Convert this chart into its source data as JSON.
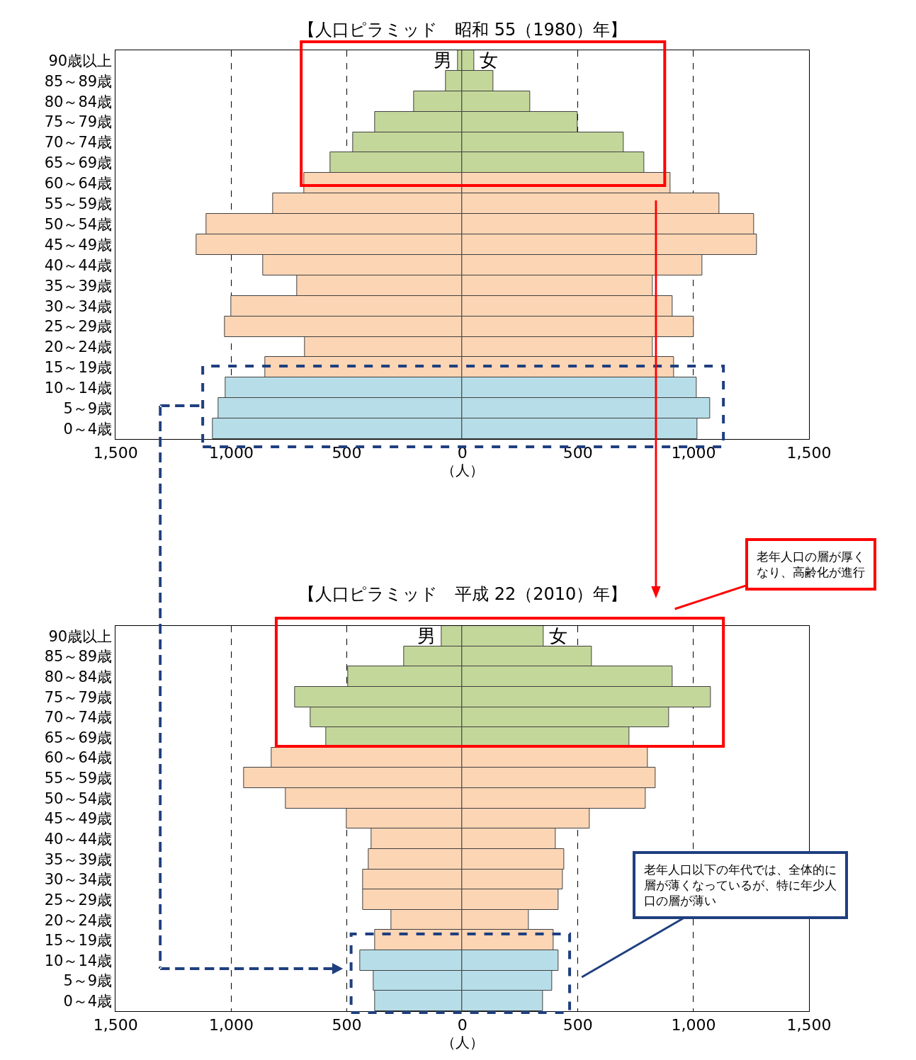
{
  "chart_data": [
    {
      "type": "bar",
      "orientation": "horizontal",
      "stacked": true,
      "title": "【人口ピラミッド　昭和 55（1980）年】",
      "xlabel": "（人）",
      "categories": [
        "90歳以上",
        "85～89歳",
        "80～84歳",
        "75～79歳",
        "70～74歳",
        "65～69歳",
        "60～64歳",
        "55～59歳",
        "50～54歳",
        "45～49歳",
        "40～44歳",
        "35～39歳",
        "30～34歳",
        "25～29歳",
        "20～24歳",
        "15～19歳",
        "10～14歳",
        "5～9歳",
        "0～4歳"
      ],
      "series": [
        {
          "name": "男",
          "values": [
            -20,
            -73,
            -210,
            -379,
            -472,
            -571,
            -685,
            -819,
            -1108,
            -1152,
            -863,
            -714,
            -1000,
            -1029,
            -682,
            -854,
            -1026,
            -1055,
            -1079
          ],
          "colors": [
            "#c4d79b",
            "#c4d79b",
            "#c4d79b",
            "#c4d79b",
            "#c4d79b",
            "#c4d79b",
            "#fcd5b5",
            "#fcd5b5",
            "#fcd5b5",
            "#fcd5b5",
            "#fcd5b5",
            "#fcd5b5",
            "#fcd5b5",
            "#fcd5b5",
            "#fcd5b5",
            "#fcd5b5",
            "#b7dee8",
            "#b7dee8",
            "#b7dee8"
          ]
        },
        {
          "name": "女",
          "values": [
            50,
            134,
            294,
            499,
            697,
            787,
            901,
            1111,
            1262,
            1274,
            1038,
            822,
            910,
            1000,
            822,
            915,
            1012,
            1073,
            1017
          ],
          "colors": [
            "#c4d79b",
            "#c4d79b",
            "#c4d79b",
            "#c4d79b",
            "#c4d79b",
            "#c4d79b",
            "#fcd5b5",
            "#fcd5b5",
            "#fcd5b5",
            "#fcd5b5",
            "#fcd5b5",
            "#fcd5b5",
            "#fcd5b5",
            "#fcd5b5",
            "#fcd5b5",
            "#fcd5b5",
            "#b7dee8",
            "#b7dee8",
            "#b7dee8"
          ]
        }
      ],
      "xlim": [
        -1500,
        1500
      ],
      "xticks": [
        {
          "value": -1500,
          "label": "1,500"
        },
        {
          "value": -1000,
          "label": "1,000"
        },
        {
          "value": -500,
          "label": "500"
        },
        0,
        500,
        {
          "value": 1000,
          "label": "1,000"
        },
        {
          "value": 1500,
          "label": "1,500"
        }
      ],
      "grid": "x"
    },
    {
      "type": "bar",
      "orientation": "horizontal",
      "stacked": true,
      "title": "【人口ピラミッド　平成 22（2010）年】",
      "xlabel": "（人）",
      "categories": [
        "90歳以上",
        "85～89歳",
        "80～84歳",
        "75～79歳",
        "70～74歳",
        "65～69歳",
        "60～64歳",
        "55～59歳",
        "50～54歳",
        "45～49歳",
        "40～44歳",
        "35～39歳",
        "30～34歳",
        "25～29歳",
        "20～24歳",
        "15～19歳",
        "10～14歳",
        "5～9歳",
        "0～4歳"
      ],
      "series": [
        {
          "name": "男",
          "values": [
            -90,
            -251,
            -496,
            -723,
            -656,
            -589,
            -825,
            -945,
            -764,
            -501,
            -394,
            -405,
            -429,
            -429,
            -309,
            -379,
            -443,
            -385,
            -379
          ],
          "colors": [
            "#c4d79b",
            "#c4d79b",
            "#c4d79b",
            "#c4d79b",
            "#c4d79b",
            "#c4d79b",
            "#fcd5b5",
            "#fcd5b5",
            "#fcd5b5",
            "#fcd5b5",
            "#fcd5b5",
            "#fcd5b5",
            "#fcd5b5",
            "#fcd5b5",
            "#fcd5b5",
            "#fcd5b5",
            "#b7dee8",
            "#b7dee8",
            "#b7dee8"
          ]
        },
        {
          "name": "女",
          "values": [
            350,
            560,
            910,
            1076,
            895,
            723,
            802,
            837,
            793,
            551,
            402,
            440,
            434,
            417,
            286,
            394,
            417,
            388,
            347
          ],
          "colors": [
            "#c4d79b",
            "#c4d79b",
            "#c4d79b",
            "#c4d79b",
            "#c4d79b",
            "#c4d79b",
            "#fcd5b5",
            "#fcd5b5",
            "#fcd5b5",
            "#fcd5b5",
            "#fcd5b5",
            "#fcd5b5",
            "#fcd5b5",
            "#fcd5b5",
            "#fcd5b5",
            "#fcd5b5",
            "#b7dee8",
            "#b7dee8",
            "#b7dee8"
          ]
        }
      ],
      "xlim": [
        -1500,
        1500
      ],
      "xticks": [
        {
          "value": -1500,
          "label": "1,500"
        },
        {
          "value": -1000,
          "label": "1,000"
        },
        {
          "value": -500,
          "label": "500"
        },
        0,
        500,
        {
          "value": 1000,
          "label": "1,000"
        },
        {
          "value": 1500,
          "label": "1,500"
        }
      ],
      "grid": "x",
      "annotations": [
        "老年人口の層が厚くなり、高齢化が進行",
        "老年人口以下の年代では、全体的に層が薄くなっているが、特に年少人口の層が薄い"
      ]
    }
  ]
}
